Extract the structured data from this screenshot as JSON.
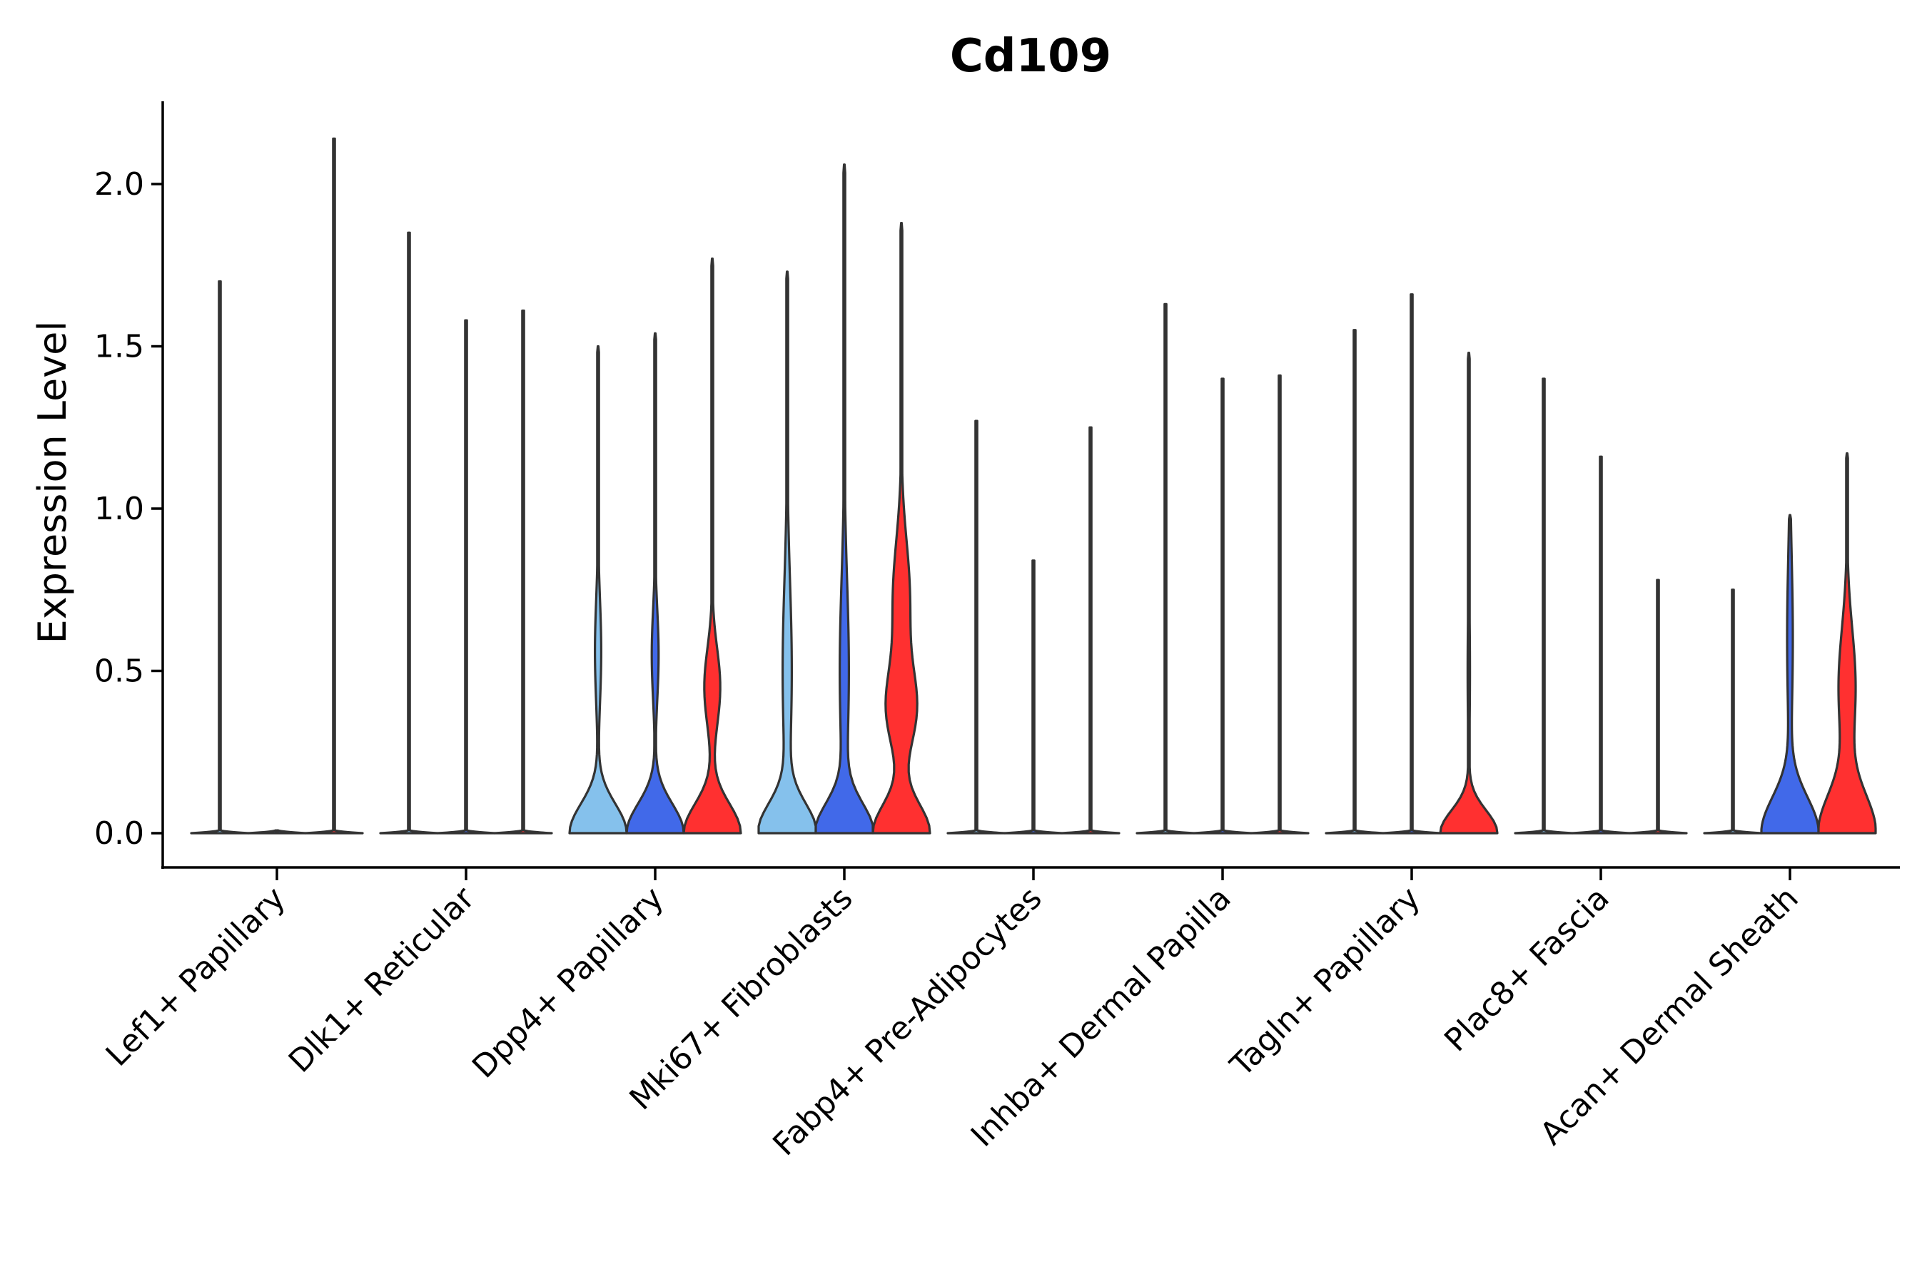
{
  "chart_data": {
    "type": "violin",
    "title": "Cd109",
    "xlabel": "",
    "ylabel": "Expression Level",
    "ylim": [
      -0.11,
      2.25
    ],
    "yticks": [
      0.0,
      0.5,
      1.0,
      1.5,
      2.0
    ],
    "ytick_labels": [
      "0.0",
      "0.5",
      "1.0",
      "1.5",
      "2.0"
    ],
    "condition_colors": [
      "#85C1EC",
      "#4169E9",
      "#FF3030"
    ],
    "categories": [
      "Lef1+ Papillary",
      "Dlk1+ Reticular",
      "Dpp4+ Papillary",
      "Mki67+ Fibroblasts",
      "Fabp4+ Pre-Adipocytes",
      "Inhba+ Dermal Papilla",
      "Tagln+ Papillary",
      "Plac8+ Fascia",
      "Acan+ Dermal Sheath"
    ],
    "groups": [
      {
        "category": "Lef1+ Papillary",
        "violins": [
          {
            "max": 1.7,
            "shape": "line",
            "bulges": []
          },
          {
            "max": 0.0,
            "shape": "line",
            "bulges": []
          },
          {
            "max": 2.14,
            "shape": "line",
            "bulges": []
          }
        ]
      },
      {
        "category": "Dlk1+ Reticular",
        "violins": [
          {
            "max": 1.85,
            "shape": "line",
            "bulges": []
          },
          {
            "max": 1.58,
            "shape": "line",
            "bulges": []
          },
          {
            "max": 1.61,
            "shape": "line",
            "bulges": []
          }
        ]
      },
      {
        "category": "Dpp4+ Papillary",
        "violins": [
          {
            "max": 1.5,
            "shape": "filled",
            "bulges": [
              {
                "y": 0.0,
                "w": 1.0,
                "s": 0.09
              },
              {
                "y": 0.56,
                "w": 0.11,
                "s": 0.16
              }
            ]
          },
          {
            "max": 1.54,
            "shape": "filled",
            "bulges": [
              {
                "y": 0.0,
                "w": 1.0,
                "s": 0.09
              },
              {
                "y": 0.55,
                "w": 0.12,
                "s": 0.14
              }
            ]
          },
          {
            "max": 1.77,
            "shape": "filled",
            "bulges": [
              {
                "y": 0.0,
                "w": 1.0,
                "s": 0.09
              },
              {
                "y": 0.45,
                "w": 0.28,
                "s": 0.12
              }
            ]
          }
        ]
      },
      {
        "category": "Mki67+ Fibroblasts",
        "violins": [
          {
            "max": 1.73,
            "shape": "filled",
            "bulges": [
              {
                "y": 0.0,
                "w": 1.0,
                "s": 0.09
              },
              {
                "y": 0.5,
                "w": 0.16,
                "s": 0.28
              }
            ]
          },
          {
            "max": 2.06,
            "shape": "filled",
            "bulges": [
              {
                "y": 0.0,
                "w": 1.0,
                "s": 0.09
              },
              {
                "y": 0.5,
                "w": 0.16,
                "s": 0.28
              }
            ]
          },
          {
            "max": 1.88,
            "shape": "filled",
            "bulges": [
              {
                "y": 0.0,
                "w": 1.0,
                "s": 0.09
              },
              {
                "y": 0.38,
                "w": 0.5,
                "s": 0.12
              },
              {
                "y": 0.72,
                "w": 0.3,
                "s": 0.18
              }
            ]
          }
        ]
      },
      {
        "category": "Fabp4+ Pre-Adipocytes",
        "violins": [
          {
            "max": 1.27,
            "shape": "line",
            "bulges": []
          },
          {
            "max": 0.84,
            "shape": "line",
            "bulges": []
          },
          {
            "max": 1.25,
            "shape": "line",
            "bulges": []
          }
        ]
      },
      {
        "category": "Inhba+ Dermal Papilla",
        "violins": [
          {
            "max": 1.63,
            "shape": "line",
            "bulges": []
          },
          {
            "max": 1.4,
            "shape": "line",
            "bulges": []
          },
          {
            "max": 1.41,
            "shape": "line",
            "bulges": []
          }
        ]
      },
      {
        "category": "Tagln+ Papillary",
        "violins": [
          {
            "max": 1.55,
            "shape": "line",
            "bulges": []
          },
          {
            "max": 1.66,
            "shape": "line",
            "bulges": []
          },
          {
            "max": 1.48,
            "shape": "filled",
            "bulges": [
              {
                "y": 0.0,
                "w": 1.0,
                "s": 0.07
              },
              {
                "y": 0.5,
                "w": 0.04,
                "s": 0.2
              }
            ]
          }
        ]
      },
      {
        "category": "Plac8+ Fascia",
        "violins": [
          {
            "max": 1.4,
            "shape": "line",
            "bulges": []
          },
          {
            "max": 1.16,
            "shape": "line",
            "bulges": []
          },
          {
            "max": 0.78,
            "shape": "line",
            "bulges": []
          }
        ]
      },
      {
        "category": "Acan+ Dermal Sheath",
        "violins": [
          {
            "max": 0.75,
            "shape": "line",
            "bulges": []
          },
          {
            "max": 0.98,
            "shape": "filled",
            "bulges": [
              {
                "y": 0.0,
                "w": 1.0,
                "s": 0.11
              },
              {
                "y": 0.6,
                "w": 0.1,
                "s": 0.25
              }
            ]
          },
          {
            "max": 1.17,
            "shape": "filled",
            "bulges": [
              {
                "y": 0.0,
                "w": 1.0,
                "s": 0.12
              },
              {
                "y": 0.45,
                "w": 0.3,
                "s": 0.18
              }
            ]
          }
        ]
      }
    ]
  }
}
